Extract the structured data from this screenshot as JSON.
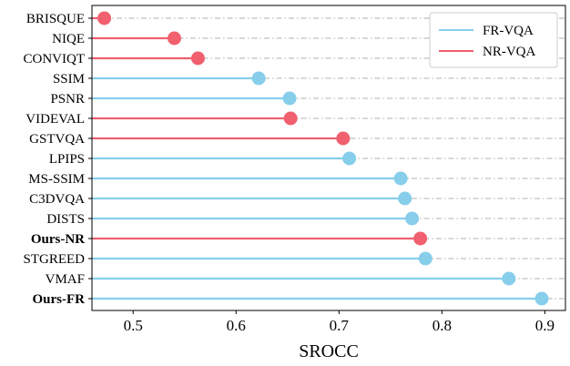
{
  "chart_data": {
    "type": "lollipop",
    "xlabel": "SROCC",
    "ylabel": "",
    "xlim": [
      0.46,
      0.92
    ],
    "x_ticks": [
      0.5,
      0.6,
      0.7,
      0.8,
      0.9
    ],
    "x_tick_labels": [
      "0.5",
      "0.6",
      "0.7",
      "0.8",
      "0.9"
    ],
    "grid": "horizontal dash-dot",
    "legend_position": "top-right",
    "colors": {
      "FR-VQA": "#87CEEB",
      "NR-VQA": "#F0606E"
    },
    "legend": [
      {
        "name": "FR-VQA",
        "color": "#87CEEB"
      },
      {
        "name": "NR-VQA",
        "color": "#F0606E"
      }
    ],
    "items": [
      {
        "label": "BRISQUE",
        "value": 0.472,
        "group": "NR-VQA",
        "bold": false
      },
      {
        "label": "NIQE",
        "value": 0.54,
        "group": "NR-VQA",
        "bold": false
      },
      {
        "label": "CONVIQT",
        "value": 0.563,
        "group": "NR-VQA",
        "bold": false
      },
      {
        "label": "SSIM",
        "value": 0.622,
        "group": "FR-VQA",
        "bold": false
      },
      {
        "label": "PSNR",
        "value": 0.652,
        "group": "FR-VQA",
        "bold": false
      },
      {
        "label": "VIDEVAL",
        "value": 0.653,
        "group": "NR-VQA",
        "bold": false
      },
      {
        "label": "GSTVQA",
        "value": 0.704,
        "group": "NR-VQA",
        "bold": false
      },
      {
        "label": "LPIPS",
        "value": 0.71,
        "group": "FR-VQA",
        "bold": false
      },
      {
        "label": "MS-SSIM",
        "value": 0.76,
        "group": "FR-VQA",
        "bold": false
      },
      {
        "label": "C3DVQA",
        "value": 0.764,
        "group": "FR-VQA",
        "bold": false
      },
      {
        "label": "DISTS",
        "value": 0.771,
        "group": "FR-VQA",
        "bold": false
      },
      {
        "label": "Ours-NR",
        "value": 0.779,
        "group": "NR-VQA",
        "bold": true
      },
      {
        "label": "STGREED",
        "value": 0.784,
        "group": "FR-VQA",
        "bold": false
      },
      {
        "label": "VMAF",
        "value": 0.865,
        "group": "FR-VQA",
        "bold": false
      },
      {
        "label": "Ours-FR",
        "value": 0.897,
        "group": "FR-VQA",
        "bold": true
      }
    ]
  }
}
